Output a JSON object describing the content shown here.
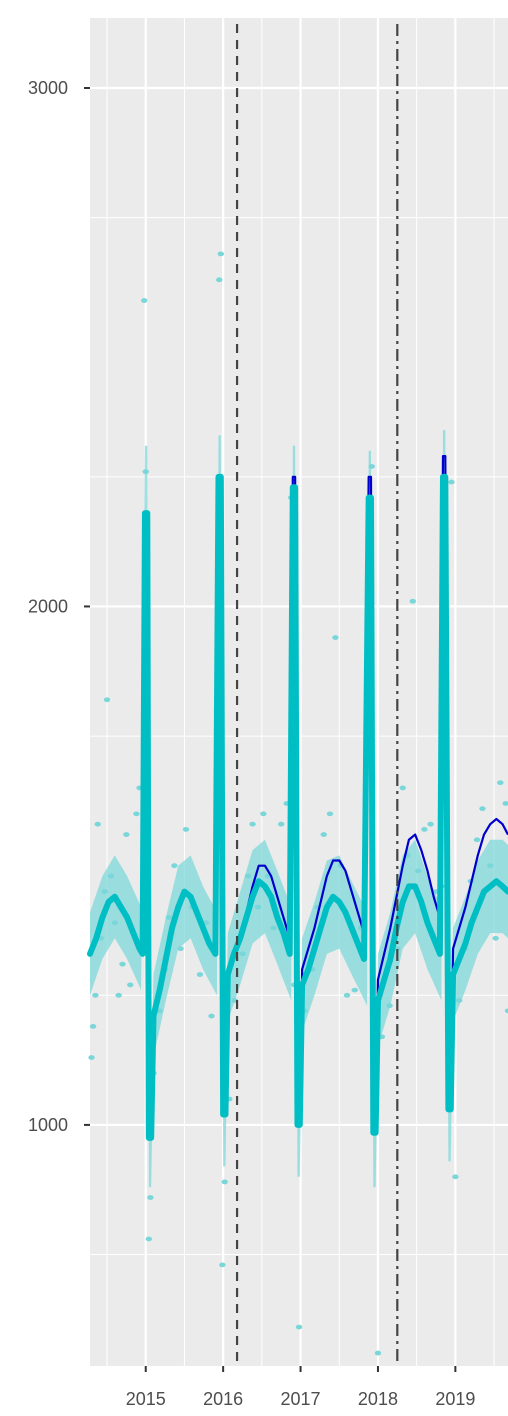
{
  "chart_data": {
    "type": "line",
    "title": "",
    "xlabel": "",
    "ylabel": "",
    "x_ticks": [
      2015,
      2016,
      2017,
      2018,
      2019
    ],
    "y_ticks": [
      1000,
      2000,
      3000
    ],
    "xlim": [
      2014.28,
      2019.68
    ],
    "ylim": [
      535,
      3135
    ],
    "grid": true,
    "legend": "none",
    "colors": {
      "panel": "#ebebeb",
      "grid": "#ffffff",
      "fitted": "#00bfc4",
      "band": "#7fd8da",
      "observed": "#79d6d9",
      "counterfactual": "#0000cd",
      "vline": "#444444"
    },
    "vlines": [
      {
        "x": 2016.18,
        "style": "dashed"
      },
      {
        "x": 2018.25,
        "style": "dashdot"
      }
    ],
    "observed_points": [
      [
        2014.3,
        1130
      ],
      [
        2014.32,
        1190
      ],
      [
        2014.35,
        1250
      ],
      [
        2014.38,
        1580
      ],
      [
        2014.42,
        1360
      ],
      [
        2014.47,
        1450
      ],
      [
        2014.5,
        1820
      ],
      [
        2014.55,
        1480
      ],
      [
        2014.6,
        1390
      ],
      [
        2014.65,
        1250
      ],
      [
        2014.7,
        1310
      ],
      [
        2014.75,
        1560
      ],
      [
        2014.8,
        1270
      ],
      [
        2014.88,
        1600
      ],
      [
        2014.92,
        1650
      ],
      [
        2014.98,
        2590
      ],
      [
        2015.0,
        2260
      ],
      [
        2015.04,
        780
      ],
      [
        2015.06,
        860
      ],
      [
        2015.1,
        1100
      ],
      [
        2015.18,
        1220
      ],
      [
        2015.25,
        1300
      ],
      [
        2015.3,
        1400
      ],
      [
        2015.37,
        1500
      ],
      [
        2015.45,
        1340
      ],
      [
        2015.52,
        1570
      ],
      [
        2015.6,
        1420
      ],
      [
        2015.7,
        1290
      ],
      [
        2015.78,
        1390
      ],
      [
        2015.85,
        1210
      ],
      [
        2015.92,
        1800
      ],
      [
        2015.95,
        2630
      ],
      [
        2015.97,
        2680
      ],
      [
        2015.99,
        730
      ],
      [
        2016.02,
        890
      ],
      [
        2016.08,
        1050
      ],
      [
        2016.15,
        1240
      ],
      [
        2016.25,
        1330
      ],
      [
        2016.32,
        1480
      ],
      [
        2016.38,
        1580
      ],
      [
        2016.45,
        1420
      ],
      [
        2016.52,
        1600
      ],
      [
        2016.58,
        1480
      ],
      [
        2016.65,
        1380
      ],
      [
        2016.75,
        1580
      ],
      [
        2016.82,
        1620
      ],
      [
        2016.88,
        2210
      ],
      [
        2016.92,
        1270
      ],
      [
        2016.98,
        610
      ],
      [
        2017.05,
        1220
      ],
      [
        2017.15,
        1300
      ],
      [
        2017.22,
        1420
      ],
      [
        2017.3,
        1560
      ],
      [
        2017.38,
        1600
      ],
      [
        2017.45,
        1940
      ],
      [
        2017.52,
        1500
      ],
      [
        2017.6,
        1250
      ],
      [
        2017.7,
        1260
      ],
      [
        2017.78,
        1380
      ],
      [
        2017.85,
        1720
      ],
      [
        2017.92,
        2270
      ],
      [
        2018.0,
        560
      ],
      [
        2018.05,
        1170
      ],
      [
        2018.15,
        1230
      ],
      [
        2018.25,
        1340
      ],
      [
        2018.32,
        1650
      ],
      [
        2018.38,
        1520
      ],
      [
        2018.45,
        2010
      ],
      [
        2018.52,
        1490
      ],
      [
        2018.6,
        1570
      ],
      [
        2018.68,
        1580
      ],
      [
        2018.75,
        1450
      ],
      [
        2018.82,
        1460
      ],
      [
        2018.88,
        1980
      ],
      [
        2018.95,
        2240
      ],
      [
        2019.0,
        900
      ],
      [
        2019.05,
        1240
      ],
      [
        2019.12,
        1340
      ],
      [
        2019.2,
        1470
      ],
      [
        2019.28,
        1550
      ],
      [
        2019.35,
        1610
      ],
      [
        2019.45,
        1500
      ],
      [
        2019.52,
        1360
      ],
      [
        2019.58,
        1660
      ],
      [
        2019.65,
        1620
      ],
      [
        2019.68,
        1220
      ]
    ],
    "fitted": [
      [
        2014.28,
        1330
      ],
      [
        2014.36,
        1360
      ],
      [
        2014.44,
        1400
      ],
      [
        2014.52,
        1430
      ],
      [
        2014.6,
        1440
      ],
      [
        2014.68,
        1420
      ],
      [
        2014.76,
        1400
      ],
      [
        2014.84,
        1370
      ],
      [
        2014.92,
        1340
      ],
      [
        2014.96,
        1330
      ],
      [
        2014.99,
        2180
      ],
      [
        2015.02,
        2180
      ],
      [
        2015.04,
        975
      ],
      [
        2015.07,
        975
      ],
      [
        2015.1,
        1210
      ],
      [
        2015.18,
        1260
      ],
      [
        2015.26,
        1320
      ],
      [
        2015.34,
        1380
      ],
      [
        2015.42,
        1420
      ],
      [
        2015.5,
        1450
      ],
      [
        2015.58,
        1440
      ],
      [
        2015.66,
        1410
      ],
      [
        2015.74,
        1380
      ],
      [
        2015.82,
        1350
      ],
      [
        2015.9,
        1330
      ],
      [
        2015.94,
        2250
      ],
      [
        2015.97,
        2250
      ],
      [
        2016.0,
        1020
      ],
      [
        2016.03,
        1020
      ],
      [
        2016.06,
        1290
      ],
      [
        2016.14,
        1330
      ],
      [
        2016.22,
        1360
      ],
      [
        2016.3,
        1400
      ],
      [
        2016.38,
        1440
      ],
      [
        2016.46,
        1470
      ],
      [
        2016.54,
        1460
      ],
      [
        2016.62,
        1440
      ],
      [
        2016.7,
        1400
      ],
      [
        2016.78,
        1370
      ],
      [
        2016.86,
        1330
      ],
      [
        2016.9,
        2230
      ],
      [
        2016.93,
        2230
      ],
      [
        2016.96,
        1000
      ],
      [
        2016.99,
        1000
      ],
      [
        2017.02,
        1270
      ],
      [
        2017.1,
        1300
      ],
      [
        2017.18,
        1340
      ],
      [
        2017.26,
        1380
      ],
      [
        2017.34,
        1420
      ],
      [
        2017.42,
        1440
      ],
      [
        2017.5,
        1430
      ],
      [
        2017.58,
        1410
      ],
      [
        2017.66,
        1380
      ],
      [
        2017.74,
        1350
      ],
      [
        2017.82,
        1320
      ],
      [
        2017.88,
        2210
      ],
      [
        2017.91,
        2210
      ],
      [
        2017.94,
        985
      ],
      [
        2017.97,
        985
      ],
      [
        2018.0,
        1240
      ],
      [
        2018.08,
        1280
      ],
      [
        2018.16,
        1320
      ],
      [
        2018.24,
        1380
      ],
      [
        2018.32,
        1430
      ],
      [
        2018.4,
        1460
      ],
      [
        2018.48,
        1460
      ],
      [
        2018.56,
        1430
      ],
      [
        2018.64,
        1390
      ],
      [
        2018.72,
        1360
      ],
      [
        2018.8,
        1330
      ],
      [
        2018.84,
        2250
      ],
      [
        2018.87,
        2250
      ],
      [
        2018.91,
        1030
      ],
      [
        2018.94,
        1030
      ],
      [
        2018.97,
        1290
      ],
      [
        2019.05,
        1320
      ],
      [
        2019.13,
        1350
      ],
      [
        2019.21,
        1390
      ],
      [
        2019.29,
        1420
      ],
      [
        2019.37,
        1450
      ],
      [
        2019.45,
        1460
      ],
      [
        2019.53,
        1470
      ],
      [
        2019.61,
        1460
      ],
      [
        2019.68,
        1450
      ]
    ],
    "band": [
      [
        2014.28,
        1250,
        1410
      ],
      [
        2014.44,
        1320,
        1480
      ],
      [
        2014.6,
        1360,
        1520
      ],
      [
        2014.76,
        1320,
        1480
      ],
      [
        2014.94,
        1260,
        1420
      ],
      [
        2014.99,
        2050,
        2310
      ],
      [
        2015.02,
        2050,
        2310
      ],
      [
        2015.04,
        880,
        1070
      ],
      [
        2015.07,
        880,
        1070
      ],
      [
        2015.1,
        1130,
        1290
      ],
      [
        2015.26,
        1240,
        1400
      ],
      [
        2015.42,
        1340,
        1500
      ],
      [
        2015.58,
        1360,
        1520
      ],
      [
        2015.74,
        1300,
        1460
      ],
      [
        2015.92,
        1250,
        1410
      ],
      [
        2015.94,
        2100,
        2330
      ],
      [
        2015.97,
        2100,
        2330
      ],
      [
        2016.0,
        920,
        1100
      ],
      [
        2016.03,
        920,
        1100
      ],
      [
        2016.06,
        1200,
        1370
      ],
      [
        2016.22,
        1270,
        1450
      ],
      [
        2016.38,
        1350,
        1530
      ],
      [
        2016.54,
        1370,
        1550
      ],
      [
        2016.7,
        1310,
        1490
      ],
      [
        2016.88,
        1240,
        1420
      ],
      [
        2016.9,
        2080,
        2310
      ],
      [
        2016.93,
        2080,
        2310
      ],
      [
        2016.96,
        900,
        1090
      ],
      [
        2016.99,
        900,
        1090
      ],
      [
        2017.02,
        1180,
        1360
      ],
      [
        2017.18,
        1250,
        1430
      ],
      [
        2017.34,
        1330,
        1510
      ],
      [
        2017.5,
        1340,
        1520
      ],
      [
        2017.66,
        1290,
        1470
      ],
      [
        2017.86,
        1230,
        1410
      ],
      [
        2017.88,
        2070,
        2300
      ],
      [
        2017.91,
        2070,
        2300
      ],
      [
        2017.94,
        880,
        1080
      ],
      [
        2017.97,
        880,
        1080
      ],
      [
        2018.0,
        1150,
        1330
      ],
      [
        2018.16,
        1230,
        1410
      ],
      [
        2018.32,
        1340,
        1520
      ],
      [
        2018.48,
        1370,
        1550
      ],
      [
        2018.64,
        1300,
        1480
      ],
      [
        2018.82,
        1240,
        1420
      ],
      [
        2018.84,
        2120,
        2340
      ],
      [
        2018.87,
        2120,
        2340
      ],
      [
        2018.91,
        930,
        1120
      ],
      [
        2018.94,
        930,
        1120
      ],
      [
        2018.97,
        1200,
        1380
      ],
      [
        2019.13,
        1260,
        1440
      ],
      [
        2019.29,
        1330,
        1510
      ],
      [
        2019.45,
        1370,
        1550
      ],
      [
        2019.61,
        1370,
        1550
      ],
      [
        2019.68,
        1360,
        1540
      ]
    ],
    "counterfactual": [
      [
        2016.18,
        1340
      ],
      [
        2016.22,
        1370
      ],
      [
        2016.3,
        1410
      ],
      [
        2016.38,
        1460
      ],
      [
        2016.46,
        1500
      ],
      [
        2016.54,
        1500
      ],
      [
        2016.62,
        1480
      ],
      [
        2016.7,
        1440
      ],
      [
        2016.78,
        1400
      ],
      [
        2016.86,
        1360
      ],
      [
        2016.9,
        2250
      ],
      [
        2016.93,
        2250
      ],
      [
        2016.96,
        1010
      ],
      [
        2016.99,
        1010
      ],
      [
        2017.02,
        1300
      ],
      [
        2017.1,
        1340
      ],
      [
        2017.18,
        1380
      ],
      [
        2017.26,
        1430
      ],
      [
        2017.34,
        1480
      ],
      [
        2017.42,
        1510
      ],
      [
        2017.5,
        1510
      ],
      [
        2017.58,
        1490
      ],
      [
        2017.66,
        1450
      ],
      [
        2017.74,
        1410
      ],
      [
        2017.82,
        1370
      ],
      [
        2017.88,
        2250
      ],
      [
        2017.91,
        2250
      ],
      [
        2017.94,
        1000
      ],
      [
        2017.97,
        1000
      ],
      [
        2018.0,
        1280
      ],
      [
        2018.08,
        1330
      ],
      [
        2018.16,
        1380
      ],
      [
        2018.24,
        1440
      ],
      [
        2018.32,
        1500
      ],
      [
        2018.4,
        1550
      ],
      [
        2018.48,
        1560
      ],
      [
        2018.56,
        1530
      ],
      [
        2018.64,
        1490
      ],
      [
        2018.72,
        1440
      ],
      [
        2018.8,
        1400
      ],
      [
        2018.84,
        2290
      ],
      [
        2018.87,
        2290
      ],
      [
        2018.91,
        1040
      ],
      [
        2018.94,
        1040
      ],
      [
        2018.97,
        1340
      ],
      [
        2019.05,
        1380
      ],
      [
        2019.13,
        1420
      ],
      [
        2019.21,
        1470
      ],
      [
        2019.29,
        1520
      ],
      [
        2019.37,
        1560
      ],
      [
        2019.45,
        1580
      ],
      [
        2019.53,
        1590
      ],
      [
        2019.61,
        1580
      ],
      [
        2019.68,
        1560
      ]
    ]
  }
}
